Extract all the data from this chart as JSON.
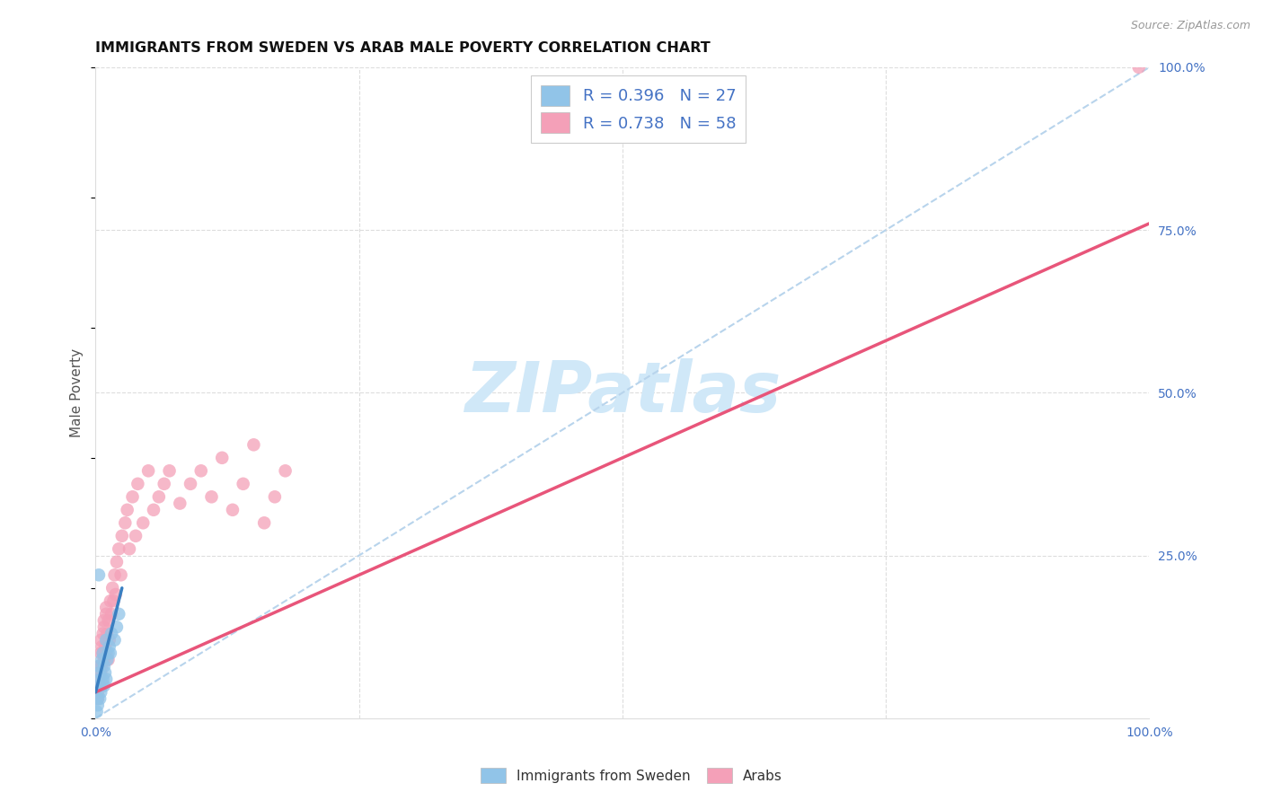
{
  "title": "IMMIGRANTS FROM SWEDEN VS ARAB MALE POVERTY CORRELATION CHART",
  "source": "Source: ZipAtlas.com",
  "ylabel": "Male Poverty",
  "legend_r1": "R = 0.396",
  "legend_n1": "N = 27",
  "legend_r2": "R = 0.738",
  "legend_n2": "N = 58",
  "legend_label1": "Immigrants from Sweden",
  "legend_label2": "Arabs",
  "blue_scatter_color": "#91c4e8",
  "pink_scatter_color": "#f4a0b8",
  "blue_line_color": "#3a7fc1",
  "pink_line_color": "#e8557a",
  "dashed_line_color": "#b8d4ec",
  "legend_text_color": "#4472c4",
  "axis_tick_color": "#4472c4",
  "watermark_color": "#d0e8f8",
  "grid_color": "#dddddd",
  "title_color": "#111111",
  "source_color": "#999999",
  "ylabel_color": "#555555",
  "sweden_x": [
    0.002,
    0.003,
    0.003,
    0.004,
    0.004,
    0.005,
    0.005,
    0.006,
    0.006,
    0.007,
    0.007,
    0.008,
    0.008,
    0.009,
    0.01,
    0.01,
    0.011,
    0.012,
    0.013,
    0.014,
    0.015,
    0.018,
    0.02,
    0.022,
    0.001,
    0.002,
    0.003
  ],
  "sweden_y": [
    0.02,
    0.05,
    0.08,
    0.03,
    0.07,
    0.04,
    0.06,
    0.05,
    0.09,
    0.06,
    0.1,
    0.05,
    0.08,
    0.07,
    0.06,
    0.12,
    0.09,
    0.1,
    0.11,
    0.1,
    0.13,
    0.12,
    0.14,
    0.16,
    0.01,
    0.03,
    0.22
  ],
  "arab_x": [
    0.002,
    0.003,
    0.004,
    0.005,
    0.005,
    0.006,
    0.007,
    0.008,
    0.008,
    0.009,
    0.01,
    0.01,
    0.011,
    0.012,
    0.013,
    0.014,
    0.015,
    0.016,
    0.017,
    0.018,
    0.019,
    0.02,
    0.022,
    0.024,
    0.025,
    0.028,
    0.03,
    0.032,
    0.035,
    0.038,
    0.04,
    0.045,
    0.05,
    0.055,
    0.06,
    0.065,
    0.07,
    0.08,
    0.09,
    0.1,
    0.11,
    0.12,
    0.13,
    0.14,
    0.15,
    0.16,
    0.17,
    0.18,
    0.002,
    0.003,
    0.004,
    0.005,
    0.006,
    0.007,
    0.008,
    0.01,
    0.012,
    0.99
  ],
  "arab_y": [
    0.04,
    0.06,
    0.05,
    0.07,
    0.12,
    0.08,
    0.1,
    0.09,
    0.14,
    0.11,
    0.1,
    0.16,
    0.13,
    0.15,
    0.12,
    0.18,
    0.16,
    0.2,
    0.18,
    0.22,
    0.19,
    0.24,
    0.26,
    0.22,
    0.28,
    0.3,
    0.32,
    0.26,
    0.34,
    0.28,
    0.36,
    0.3,
    0.38,
    0.32,
    0.34,
    0.36,
    0.38,
    0.33,
    0.36,
    0.38,
    0.34,
    0.4,
    0.32,
    0.36,
    0.42,
    0.3,
    0.34,
    0.38,
    0.03,
    0.05,
    0.08,
    0.1,
    0.11,
    0.13,
    0.15,
    0.17,
    0.09,
    1.0
  ],
  "xlim": [
    0.0,
    1.0
  ],
  "ylim": [
    0.0,
    1.0
  ],
  "xticks": [
    0.0,
    1.0
  ],
  "xticklabels": [
    "0.0%",
    "100.0%"
  ],
  "yticks_right": [
    0.25,
    0.5,
    0.75,
    1.0
  ],
  "yticklabels_right": [
    "25.0%",
    "50.0%",
    "75.0%",
    "100.0%"
  ],
  "pink_line_x": [
    0.0,
    1.0
  ],
  "pink_line_y": [
    0.04,
    0.76
  ],
  "blue_line_x": [
    0.0,
    0.025
  ],
  "blue_line_y": [
    0.04,
    0.2
  ],
  "diag_line_x": [
    0.0,
    1.0
  ],
  "diag_line_y": [
    0.0,
    1.0
  ]
}
